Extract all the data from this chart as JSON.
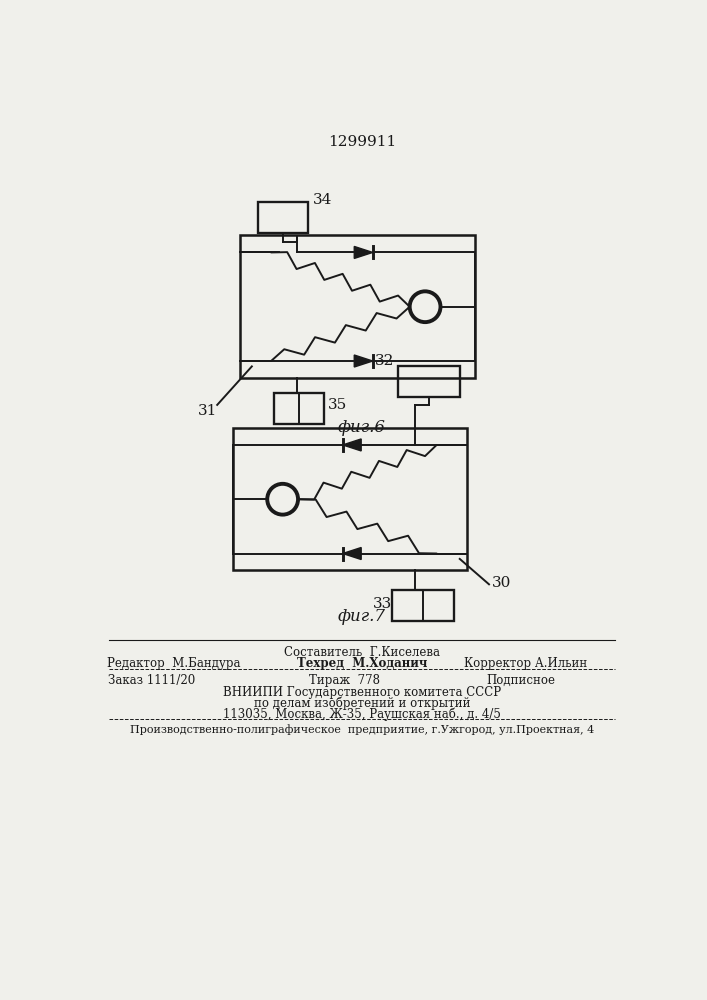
{
  "title": "1299911",
  "fig6_label": "фиг.6",
  "fig7_label": "фиг.7",
  "label_34": "34",
  "label_31": "31",
  "label_35": "35",
  "label_32": "32",
  "label_30": "30",
  "label_33": "33",
  "footer_line1": "Составитель  Г.Киселева",
  "footer_line2_left": "Редактор  М.Бандура",
  "footer_line2_mid": "Техред  М.Ходанич",
  "footer_line2_right": "Корректор А.Ильин",
  "footer_line3_left": "Заказ 1111/20",
  "footer_line3_mid": "Тираж  778",
  "footer_line3_right": "Подписное",
  "footer_line4": "ВНИИПИ Государственного комитета СССР",
  "footer_line5": "по делам изобретений и открытий",
  "footer_line6": "113035, Москва, Ж-35, Раушская наб., д. 4/5",
  "footer_bottom": "Производственно-полиграфическое  предприятие, г.Ужгород, ул.Проектная, 4",
  "bg_color": "#f0f0eb",
  "line_color": "#1a1a1a",
  "lw": 1.4
}
